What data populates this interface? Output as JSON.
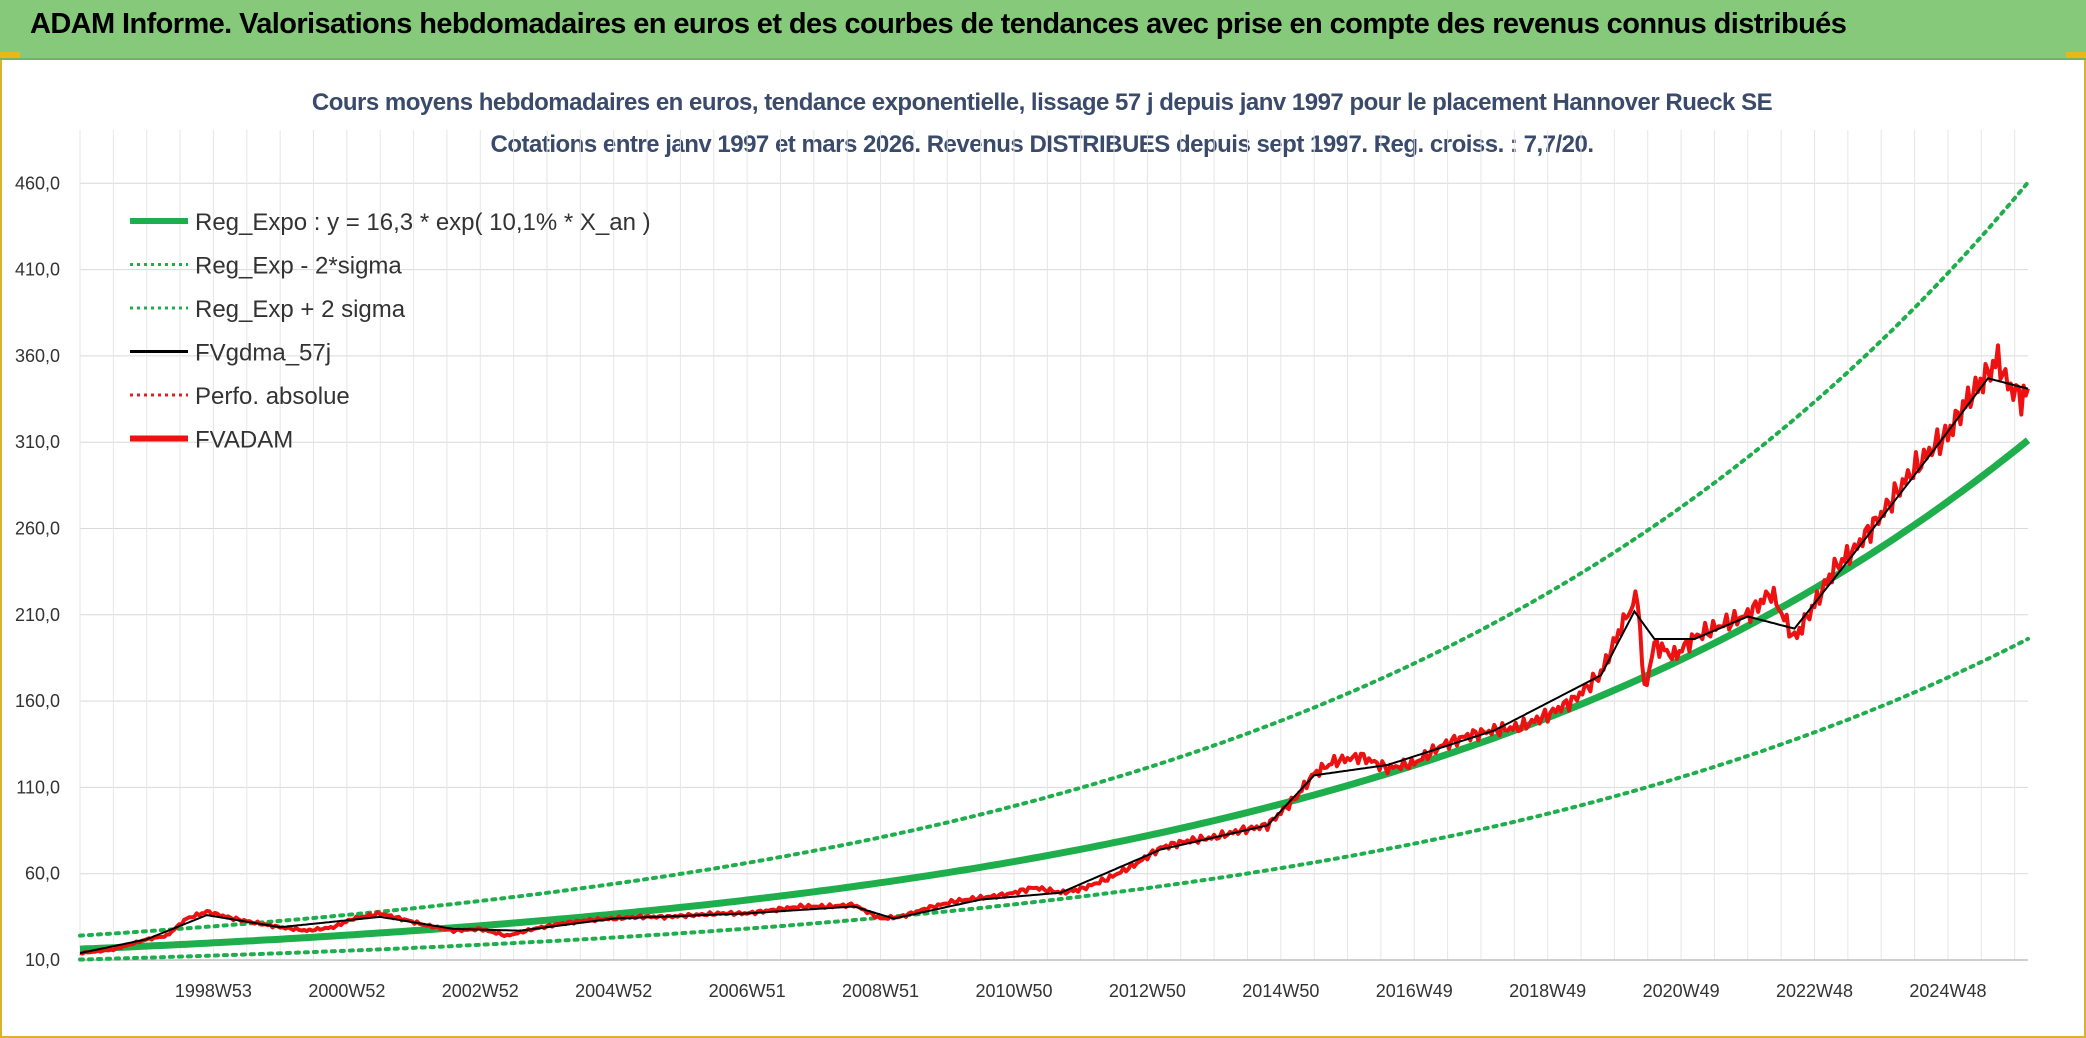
{
  "banner": {
    "title": "ADAM Informe. Valorisations hebdomadaires en euros et des courbes de tendances avec prise en compte des revenus connus distribués"
  },
  "chart_data": {
    "type": "line",
    "title_line1": "Cours moyens hebdomadaires en euros, tendance exponentielle, lissage 57 j depuis janv 1997 pour le placement Hannover Rueck SE",
    "title_line2": "Cotations entre janv 1997 et mars 2026. Revenus DISTRIBUES depuis sept 1997. Reg. croiss. : 7,7/20.",
    "x_ticks": [
      "1998W53",
      "2000W52",
      "2002W52",
      "2004W52",
      "2006W51",
      "2008W51",
      "2010W50",
      "2012W50",
      "2014W50",
      "2016W49",
      "2018W49",
      "2020W49",
      "2022W48",
      "2024W48"
    ],
    "y_ticks": [
      "10,0",
      "60,0",
      "110,0",
      "160,0",
      "210,0",
      "260,0",
      "310,0",
      "360,0",
      "410,0",
      "460,0"
    ],
    "xlim": [
      1997.0,
      2026.2
    ],
    "ylim": [
      10,
      470
    ],
    "grid": true,
    "legend_position": "top-left",
    "legend": [
      {
        "label": "Reg_Expo : y = 16,3 * exp( 10,1% *  X_an )",
        "color": "#1fae4c",
        "style": "solid-thick"
      },
      {
        "label": "Reg_Exp - 2*sigma",
        "color": "#1fae4c",
        "style": "dotted"
      },
      {
        "label": "Reg_Exp + 2 sigma",
        "color": "#1fae4c",
        "style": "dotted"
      },
      {
        "label": "FVgdma_57j",
        "color": "#000000",
        "style": "solid"
      },
      {
        "label": "Perfo. absolue",
        "color": "#e02020",
        "style": "dotted"
      },
      {
        "label": "FVADAM",
        "color": "#ee1111",
        "style": "solid-thick"
      }
    ],
    "regression": {
      "a": 16.3,
      "rate": 0.101,
      "start_year": 1997.0,
      "lower_factor": 0.63,
      "upper_factor": 1.48
    },
    "series": [
      {
        "name": "FVADAM",
        "color": "#ee1111",
        "points": [
          [
            1997.0,
            14
          ],
          [
            1997.5,
            16
          ],
          [
            1998.0,
            22
          ],
          [
            1998.3,
            24
          ],
          [
            1998.6,
            34
          ],
          [
            1998.9,
            38
          ],
          [
            1999.3,
            34
          ],
          [
            1999.7,
            31
          ],
          [
            2000.0,
            29
          ],
          [
            2000.4,
            27
          ],
          [
            2000.8,
            29
          ],
          [
            2001.1,
            34
          ],
          [
            2001.5,
            37
          ],
          [
            2001.9,
            33
          ],
          [
            2002.2,
            30
          ],
          [
            2002.6,
            27
          ],
          [
            2003.0,
            28
          ],
          [
            2003.4,
            24
          ],
          [
            2003.8,
            28
          ],
          [
            2004.2,
            31
          ],
          [
            2004.6,
            33
          ],
          [
            2005.0,
            34
          ],
          [
            2005.4,
            35
          ],
          [
            2005.8,
            35
          ],
          [
            2006.2,
            36
          ],
          [
            2006.6,
            37
          ],
          [
            2007.0,
            37
          ],
          [
            2007.4,
            39
          ],
          [
            2007.8,
            41
          ],
          [
            2008.2,
            41
          ],
          [
            2008.6,
            42
          ],
          [
            2009.0,
            34
          ],
          [
            2009.3,
            35
          ],
          [
            2009.7,
            40
          ],
          [
            2010.1,
            44
          ],
          [
            2010.5,
            46
          ],
          [
            2010.9,
            48
          ],
          [
            2011.3,
            52
          ],
          [
            2011.7,
            49
          ],
          [
            2012.0,
            51
          ],
          [
            2012.4,
            57
          ],
          [
            2012.8,
            65
          ],
          [
            2013.2,
            75
          ],
          [
            2013.6,
            79
          ],
          [
            2014.0,
            81
          ],
          [
            2014.4,
            85
          ],
          [
            2014.8,
            88
          ],
          [
            2015.2,
            103
          ],
          [
            2015.5,
            118
          ],
          [
            2015.8,
            125
          ],
          [
            2016.2,
            128
          ],
          [
            2016.6,
            121
          ],
          [
            2017.0,
            124
          ],
          [
            2017.4,
            134
          ],
          [
            2017.8,
            140
          ],
          [
            2018.2,
            143
          ],
          [
            2018.6,
            145
          ],
          [
            2019.0,
            152
          ],
          [
            2019.4,
            161
          ],
          [
            2019.8,
            176
          ],
          [
            2020.1,
            203
          ],
          [
            2020.35,
            221
          ],
          [
            2020.45,
            165
          ],
          [
            2020.6,
            193
          ],
          [
            2020.9,
            186
          ],
          [
            2021.2,
            197
          ],
          [
            2021.6,
            204
          ],
          [
            2022.0,
            210
          ],
          [
            2022.35,
            223
          ],
          [
            2022.7,
            196
          ],
          [
            2023.0,
            216
          ],
          [
            2023.3,
            237
          ],
          [
            2023.6,
            248
          ],
          [
            2024.0,
            268
          ],
          [
            2024.4,
            290
          ],
          [
            2024.8,
            308
          ],
          [
            2025.0,
            315
          ],
          [
            2025.3,
            335
          ],
          [
            2025.6,
            350
          ],
          [
            2025.75,
            358
          ],
          [
            2025.9,
            343
          ],
          [
            2026.1,
            336
          ],
          [
            2026.2,
            341
          ]
        ]
      },
      {
        "name": "FVgdma_57j",
        "color": "#000000",
        "points": [
          [
            1997.0,
            14
          ],
          [
            1998.0,
            22
          ],
          [
            1998.9,
            36
          ],
          [
            2000.0,
            29
          ],
          [
            2001.5,
            35
          ],
          [
            2002.6,
            28
          ],
          [
            2003.6,
            27
          ],
          [
            2005.0,
            34
          ],
          [
            2007.0,
            37
          ],
          [
            2008.6,
            41
          ],
          [
            2009.2,
            34
          ],
          [
            2010.5,
            45
          ],
          [
            2011.7,
            49
          ],
          [
            2013.2,
            74
          ],
          [
            2014.8,
            88
          ],
          [
            2015.5,
            117
          ],
          [
            2016.6,
            123
          ],
          [
            2018.2,
            143
          ],
          [
            2019.8,
            175
          ],
          [
            2020.3,
            212
          ],
          [
            2020.6,
            196
          ],
          [
            2021.2,
            196
          ],
          [
            2022.0,
            209
          ],
          [
            2022.7,
            202
          ],
          [
            2023.6,
            246
          ],
          [
            2024.8,
            306
          ],
          [
            2025.6,
            347
          ],
          [
            2026.2,
            341
          ]
        ]
      }
    ]
  }
}
